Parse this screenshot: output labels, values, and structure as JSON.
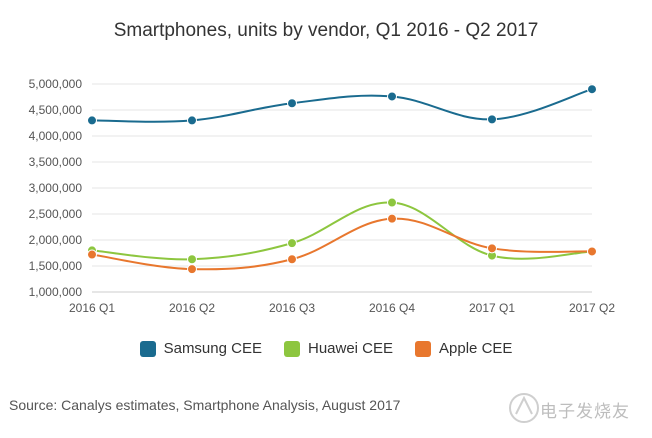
{
  "chart_data": {
    "type": "line",
    "title": "Smartphones, units by vendor, Q1 2016 - Q2 2017",
    "categories": [
      "2016 Q1",
      "2016 Q2",
      "2016 Q3",
      "2016 Q4",
      "2017 Q1",
      "2017 Q2"
    ],
    "y_ticks": [
      "1,000,000",
      "1,500,000",
      "2,000,000",
      "2,500,000",
      "3,000,000",
      "3,500,000",
      "4,000,000",
      "4,500,000",
      "5,000,000"
    ],
    "ylim": [
      1000000,
      5000000
    ],
    "grid": true,
    "legend_position": "bottom",
    "series": [
      {
        "name": "Samsung CEE",
        "color": "#1a6b8f",
        "values": [
          4300000,
          4300000,
          4630000,
          4760000,
          4320000,
          4900000
        ]
      },
      {
        "name": "Huawei CEE",
        "color": "#8dc63f",
        "values": [
          1800000,
          1630000,
          1940000,
          2720000,
          1700000,
          1780000
        ]
      },
      {
        "name": "Apple CEE",
        "color": "#e8772e",
        "values": [
          1720000,
          1440000,
          1630000,
          2410000,
          1840000,
          1780000
        ]
      }
    ]
  },
  "source": "Source: Canalys estimates, Smartphone Analysis, August 2017",
  "watermark_text": "电子发烧友"
}
